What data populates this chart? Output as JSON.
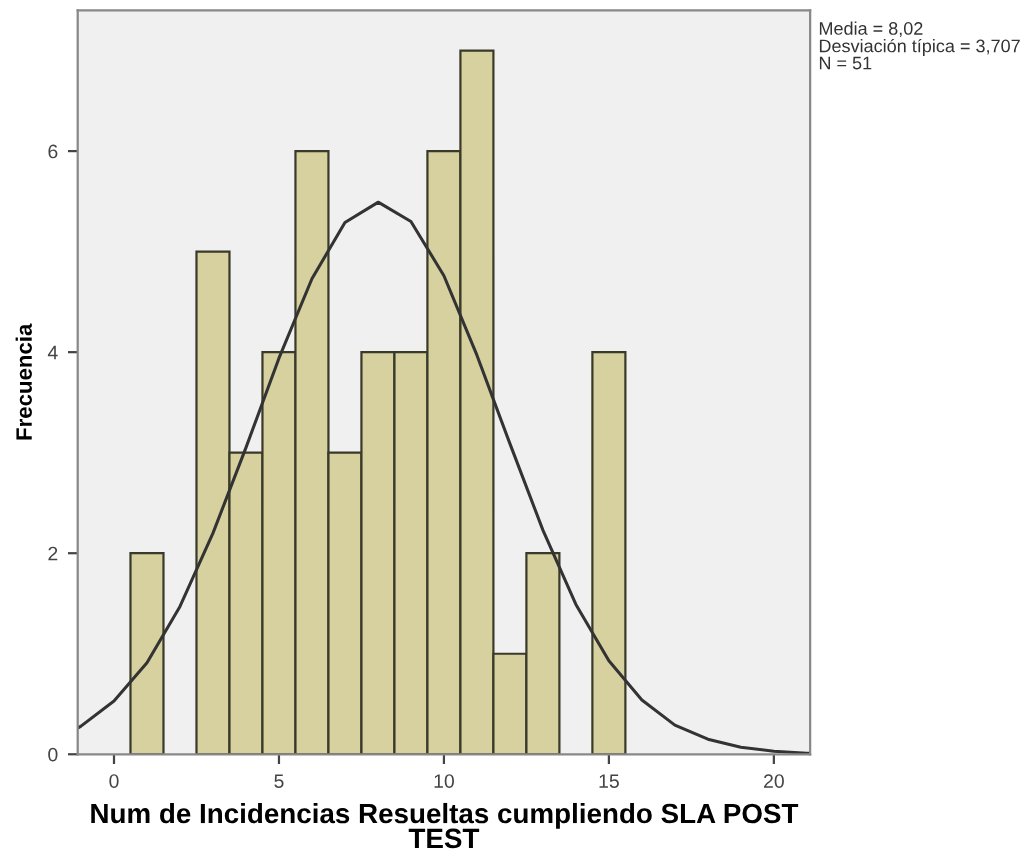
{
  "chart_data": {
    "type": "histogram",
    "xlabel": "Num de Incidencias Resueltas cumpliendo SLA POST\nTEST",
    "ylabel": "Frecuencia",
    "bins": [
      0.5,
      1.5,
      2.5,
      3.5,
      4.5,
      5.5,
      6.5,
      7.5,
      8.5,
      9.5,
      10.5,
      11.5,
      12.5,
      13.5,
      14.5,
      15.5
    ],
    "values": [
      2,
      0,
      5,
      3,
      4,
      6,
      3,
      4,
      4,
      6,
      7,
      1,
      2,
      0,
      4
    ],
    "color": "#d6d19e",
    "series": [
      {
        "type": "line",
        "color": "#333333",
        "x": [
          -1.1,
          -1,
          0,
          1,
          2,
          3,
          4,
          5,
          6,
          7,
          8,
          8.02,
          9,
          10,
          11,
          12,
          13,
          14,
          15,
          16,
          17,
          18,
          19,
          20,
          21,
          21.1
        ],
        "values": [
          0.26,
          0.28,
          0.53,
          0.91,
          1.47,
          2.2,
          3.05,
          3.94,
          4.73,
          5.29,
          5.49,
          5.49,
          5.3,
          4.76,
          3.97,
          3.09,
          2.23,
          1.49,
          0.93,
          0.54,
          0.29,
          0.15,
          0.07,
          0.03,
          0.01,
          0.01
        ]
      }
    ],
    "xlim": [
      -1.1,
      21.1
    ],
    "ylim": [
      0,
      7.4
    ],
    "xticks": [
      0,
      5,
      10,
      15,
      20
    ],
    "yticks": [
      0,
      2,
      4,
      6
    ],
    "grid": false,
    "legend": false,
    "annotations": [
      "Media = 8,02",
      "Desviación típica = 3,707",
      "N = 51"
    ]
  }
}
